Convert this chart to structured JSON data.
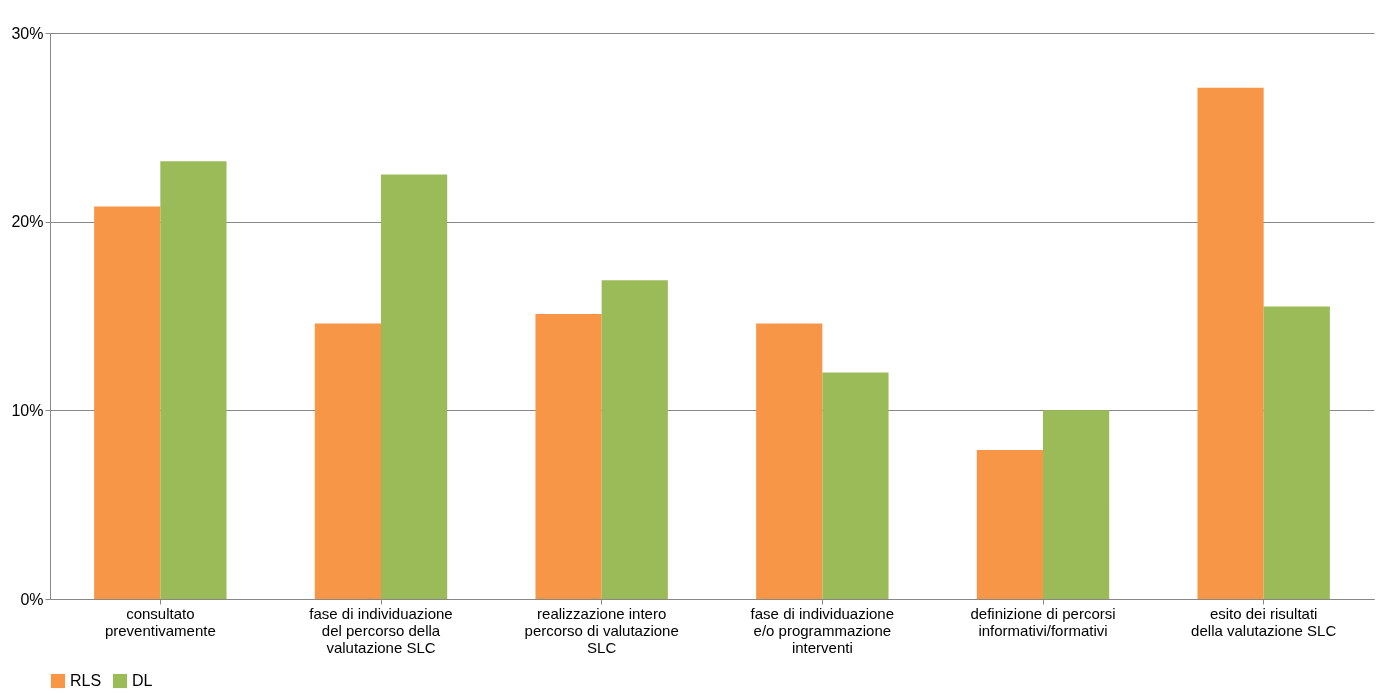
{
  "chart_data": {
    "type": "bar",
    "categories": [
      "consultato preventivamente",
      "fase di individuazione del percorso della valutazione SLC",
      "realizzazione intero percorso di valutazione SLC",
      "fase di individuazione e/o programmazione interventi",
      "definizione di percorsi informativi/formativi",
      "esito dei risultati della valutazione SLC"
    ],
    "series": [
      {
        "name": "RLS",
        "color": "#f79646",
        "values": [
          20.8,
          14.6,
          15.1,
          14.6,
          7.9,
          27.1
        ]
      },
      {
        "name": "DL",
        "color": "#9bbb59",
        "values": [
          23.2,
          22.5,
          16.9,
          12.0,
          10.0,
          15.5
        ]
      }
    ],
    "ylim": [
      0,
      30
    ],
    "yticks": [
      {
        "value": 0,
        "label": "0%"
      },
      {
        "value": 10,
        "label": "10%"
      },
      {
        "value": 20,
        "label": "20%"
      },
      {
        "value": 30,
        "label": "30%"
      }
    ],
    "grid": "y",
    "legend": "bottom"
  }
}
